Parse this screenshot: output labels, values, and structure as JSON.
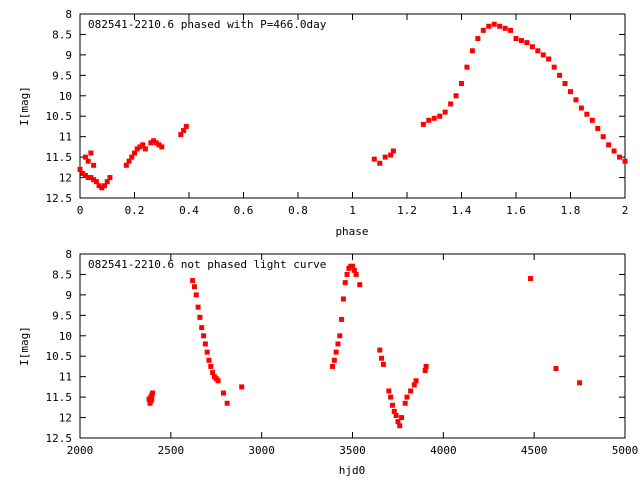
{
  "chart_data": [
    {
      "type": "scatter",
      "title": "082541-2210.6 phased with P=466.0day",
      "xlabel": "phase",
      "ylabel": "I[mag]",
      "xlim": [
        0,
        2
      ],
      "ylim": [
        8,
        12.5
      ],
      "y_inverted": true,
      "xticks": [
        0,
        0.2,
        0.4,
        0.6,
        0.8,
        1,
        1.2,
        1.4,
        1.6,
        1.8,
        2
      ],
      "xtick_labels": [
        "0",
        "0.2",
        "0.4",
        "0.6",
        "0.8",
        "1",
        "1.2",
        "1.4",
        "1.6",
        "1.8",
        "2"
      ],
      "yticks": [
        8,
        8.5,
        9,
        9.5,
        10,
        10.5,
        11,
        11.5,
        12,
        12.5
      ],
      "ytick_labels": [
        "8",
        "8.5",
        "9",
        "9.5",
        "10",
        "10.5",
        "11",
        "11.5",
        "12",
        "12.5"
      ],
      "grid": false,
      "marker_color": "#ff0000",
      "x": [
        0.0,
        0.01,
        0.02,
        0.03,
        0.04,
        0.05,
        0.06,
        0.07,
        0.08,
        0.09,
        0.1,
        0.11,
        0.02,
        0.03,
        0.04,
        0.05,
        0.17,
        0.18,
        0.19,
        0.2,
        0.21,
        0.22,
        0.23,
        0.24,
        0.26,
        0.27,
        0.28,
        0.29,
        0.3,
        0.37,
        0.38,
        0.39,
        1.08,
        1.1,
        1.12,
        1.14,
        1.15,
        1.26,
        1.28,
        1.3,
        1.32,
        1.34,
        1.36,
        1.38,
        1.4,
        1.42,
        1.44,
        1.46,
        1.48,
        1.5,
        1.52,
        1.54,
        1.56,
        1.58,
        1.6,
        1.62,
        1.64,
        1.66,
        1.68,
        1.7,
        1.72,
        1.74,
        1.76,
        1.78,
        1.8,
        1.82,
        1.84,
        1.86,
        1.88,
        1.9,
        1.92,
        1.94,
        1.96,
        1.98,
        2.0
      ],
      "y": [
        11.8,
        11.9,
        11.95,
        12.0,
        12.0,
        12.05,
        12.1,
        12.2,
        12.25,
        12.2,
        12.1,
        12.0,
        11.5,
        11.6,
        11.4,
        11.7,
        11.7,
        11.6,
        11.5,
        11.4,
        11.3,
        11.25,
        11.2,
        11.3,
        11.15,
        11.1,
        11.15,
        11.2,
        11.25,
        10.95,
        10.85,
        10.75,
        11.55,
        11.65,
        11.5,
        11.45,
        11.35,
        10.7,
        10.6,
        10.55,
        10.5,
        10.4,
        10.2,
        10.0,
        9.7,
        9.3,
        8.9,
        8.6,
        8.4,
        8.3,
        8.25,
        8.3,
        8.35,
        8.4,
        8.6,
        8.65,
        8.7,
        8.8,
        8.9,
        9.0,
        9.1,
        9.3,
        9.5,
        9.7,
        9.9,
        10.1,
        10.3,
        10.45,
        10.6,
        10.8,
        11.0,
        11.2,
        11.35,
        11.5,
        11.6
      ]
    },
    {
      "type": "scatter",
      "title": "082541-2210.6 not phased light curve",
      "xlabel": "hjd0",
      "ylabel": "I[mag]",
      "xlim": [
        2000,
        5000
      ],
      "ylim": [
        8,
        12.5
      ],
      "y_inverted": true,
      "xticks": [
        2000,
        2500,
        3000,
        3500,
        4000,
        4500,
        5000
      ],
      "xtick_labels": [
        "2000",
        "2500",
        "3000",
        "3500",
        "4000",
        "4500",
        "5000"
      ],
      "yticks": [
        8,
        8.5,
        9,
        9.5,
        10,
        10.5,
        11,
        11.5,
        12,
        12.5
      ],
      "ytick_labels": [
        "8",
        "8.5",
        "9",
        "9.5",
        "10",
        "10.5",
        "11",
        "11.5",
        "12",
        "12.5"
      ],
      "grid": false,
      "marker_color": "#ff0000",
      "x": [
        2380,
        2385,
        2390,
        2395,
        2400,
        2390,
        2395,
        2620,
        2630,
        2640,
        2650,
        2660,
        2670,
        2680,
        2690,
        2700,
        2710,
        2720,
        2730,
        2740,
        2750,
        2760,
        2790,
        2810,
        2890,
        3390,
        3400,
        3410,
        3420,
        3430,
        3440,
        3450,
        3460,
        3470,
        3480,
        3490,
        3500,
        3510,
        3520,
        3540,
        3650,
        3660,
        3670,
        3700,
        3710,
        3720,
        3730,
        3740,
        3750,
        3760,
        3770,
        3790,
        3800,
        3820,
        3840,
        3850,
        3900,
        3905,
        4480,
        4620,
        4750
      ],
      "y": [
        11.55,
        11.65,
        11.6,
        11.45,
        11.4,
        11.5,
        11.55,
        8.65,
        8.8,
        9.0,
        9.3,
        9.55,
        9.8,
        10.0,
        10.2,
        10.4,
        10.6,
        10.75,
        10.9,
        11.0,
        11.05,
        11.1,
        11.4,
        11.65,
        11.25,
        10.75,
        10.6,
        10.4,
        10.2,
        10.0,
        9.6,
        9.1,
        8.7,
        8.5,
        8.35,
        8.3,
        8.3,
        8.4,
        8.5,
        8.75,
        10.35,
        10.55,
        10.7,
        11.35,
        11.5,
        11.7,
        11.85,
        11.95,
        12.1,
        12.2,
        12.0,
        11.65,
        11.5,
        11.35,
        11.2,
        11.1,
        10.85,
        10.75,
        8.6,
        10.8,
        11.15
      ]
    }
  ]
}
